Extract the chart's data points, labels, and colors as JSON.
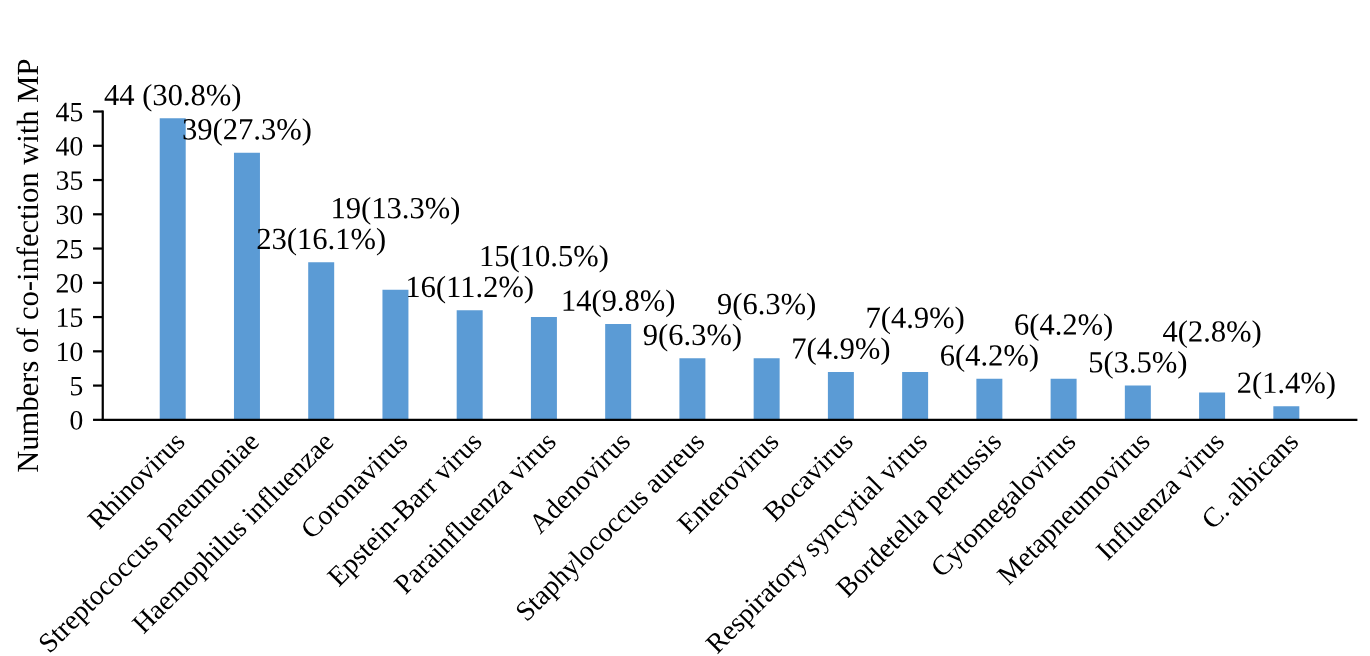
{
  "chart_data": {
    "type": "bar",
    "ylabel": "Numbers of co-infection with MP",
    "categories": [
      "Rhinovirus",
      "Streptococcus pneumoniae",
      "Haemophilus influenzae",
      "Coronavirus",
      "Epstein-Barr virus",
      "Parainfluenza virus",
      "Adenovirus",
      "Staphylococcus aureus",
      "Enterovirus",
      "Bocavirus",
      "Respiratory syncytial virus",
      "Bordetella pertussis",
      "Cytomegalovirus",
      "Metapneumovirus",
      "Influenza virus",
      "C. albicans"
    ],
    "values": [
      44,
      39,
      23,
      19,
      16,
      15,
      14,
      9,
      9,
      7,
      7,
      6,
      6,
      5,
      4,
      2
    ],
    "value_labels": [
      "44 (30.8%)",
      "39(27.3%)",
      "23(16.1%)",
      "19(13.3%)",
      "16(11.2%)",
      "15(10.5%)",
      "14(9.8%)",
      "9(6.3%)",
      "9(6.3%)",
      "7(4.9%)",
      "7(4.9%)",
      "6(4.2%)",
      "6(4.2%)",
      "5(3.5%)",
      "4(2.8%)",
      "2(1.4%)"
    ],
    "color": "#5b9bd5",
    "ylim": [
      0,
      45
    ],
    "yticks": [
      0,
      5,
      10,
      15,
      20,
      25,
      30,
      35,
      40,
      45
    ],
    "grid": false,
    "legend": false
  }
}
